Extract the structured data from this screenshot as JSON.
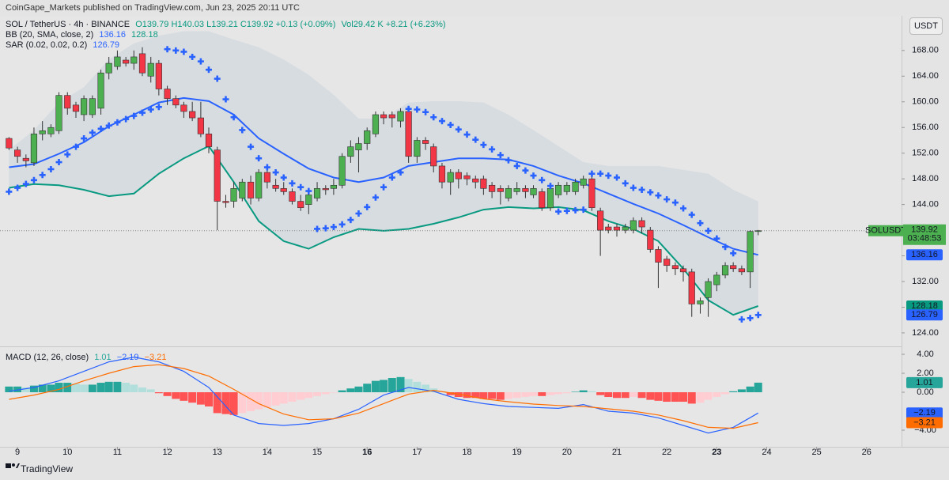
{
  "header": {
    "published": "CoinGape_Markets published on TradingView.com, Jun 23, 2025 20:11 UTC",
    "currency_button": "USDT",
    "footer_brand": "TradingView"
  },
  "chart_data": [
    {
      "type": "candlestick",
      "symbol": "SOL / TetherUS · 4h · BINANCE",
      "ohlc_text": "O139.79 H140.03 L139.21 C139.92 +0.13 (+0.09%)",
      "volume_text": "Vol29.42 K +8.21 (+6.23%)",
      "symbol_short": "SOLUSDT",
      "countdown": "03:48:53",
      "up_color": "#4caf50",
      "down_color": "#f23645",
      "grid": false,
      "xlim": [
        8.65,
        26.7
      ],
      "xticks": [
        9,
        10,
        11,
        12,
        13,
        14,
        15,
        16,
        17,
        18,
        19,
        20,
        21,
        22,
        23,
        24,
        25,
        26
      ],
      "xticks_bold": [
        16,
        23
      ],
      "ylim": [
        121.9,
        173.4
      ],
      "yticks": [
        {
          "value": 124,
          "label": "124.00"
        },
        {
          "value": 128,
          "label": "128.00"
        },
        {
          "value": 132,
          "label": "132.00"
        },
        {
          "value": 136,
          "label": "136.00"
        },
        {
          "value": 140,
          "label": "140.00"
        },
        {
          "value": 144,
          "label": "144.00"
        },
        {
          "value": 148,
          "label": "148.00"
        },
        {
          "value": 152,
          "label": "152.00"
        },
        {
          "value": 156,
          "label": "156.00"
        },
        {
          "value": 160,
          "label": "160.00"
        },
        {
          "value": 164,
          "label": "164.00"
        },
        {
          "value": 168,
          "label": "168.00"
        }
      ],
      "x": [
        8.83,
        9,
        9.17,
        9.33,
        9.5,
        9.67,
        9.83,
        10,
        10.17,
        10.33,
        10.5,
        10.67,
        10.83,
        11,
        11.17,
        11.33,
        11.5,
        11.67,
        11.83,
        12,
        12.17,
        12.33,
        12.5,
        12.67,
        12.83,
        13,
        13.17,
        13.33,
        13.5,
        13.67,
        13.83,
        14,
        14.17,
        14.33,
        14.5,
        14.67,
        14.83,
        15,
        15.17,
        15.33,
        15.5,
        15.67,
        15.83,
        16,
        16.17,
        16.33,
        16.5,
        16.67,
        16.83,
        17,
        17.17,
        17.33,
        17.5,
        17.67,
        17.83,
        18,
        18.17,
        18.33,
        18.5,
        18.67,
        18.83,
        19,
        19.17,
        19.33,
        19.5,
        19.67,
        19.83,
        20,
        20.17,
        20.33,
        20.5,
        20.67,
        20.83,
        21,
        21.17,
        21.33,
        21.5,
        21.67,
        21.83,
        22,
        22.17,
        22.33,
        22.5,
        22.67,
        22.83,
        23,
        23.17,
        23.33,
        23.5,
        23.67,
        23.83
      ],
      "open": [
        154.3,
        152.5,
        151.2,
        150.5,
        155,
        155,
        155.5,
        161,
        159.5,
        158,
        158,
        159,
        164.5,
        165.5,
        166.5,
        166,
        167.5,
        164,
        166,
        162,
        160.5,
        159.5,
        158.5,
        157.5,
        155,
        152.5,
        144.5,
        144.5,
        145,
        147.5,
        145,
        149,
        147,
        146.5,
        146,
        144.5,
        144,
        145,
        146.5,
        146.5,
        147,
        151.5,
        152.5,
        153.5,
        155,
        158,
        158,
        157,
        158.5,
        151.5,
        154,
        153,
        150,
        147.5,
        149,
        148.5,
        148,
        148,
        147,
        146.5,
        145,
        146,
        146.5,
        145.5,
        146,
        143.5,
        145.5,
        146,
        146,
        147,
        148,
        143,
        140.5,
        140.5,
        140,
        140,
        141.5,
        140,
        137,
        135.5,
        134.5,
        134,
        133.5,
        128.5,
        129.5,
        131.5,
        133,
        134.5,
        134,
        133.5,
        139.79
      ],
      "high": [
        154.5,
        153,
        151.8,
        156,
        157,
        156.5,
        161.5,
        161.5,
        160,
        161,
        161,
        165,
        167,
        168,
        167,
        168,
        168.5,
        167,
        166.5,
        162.5,
        161,
        160,
        160,
        160,
        156,
        153,
        145.5,
        147.5,
        148,
        148.5,
        149.5,
        149.5,
        148,
        147.5,
        146.5,
        145.5,
        146,
        147.5,
        147,
        148,
        152,
        154,
        154.5,
        156,
        158.5,
        158.5,
        158.5,
        159,
        159,
        154.5,
        154.5,
        153.5,
        150.5,
        149.5,
        149.5,
        149,
        148.5,
        148.5,
        147.5,
        147,
        147,
        147.5,
        147,
        147,
        146.5,
        147,
        147.5,
        147.5,
        148,
        148.5,
        148.5,
        143.5,
        141,
        141,
        141,
        142,
        142,
        140.5,
        137.5,
        136,
        135,
        134.5,
        134,
        129.5,
        132.5,
        133.5,
        135,
        135,
        134.5,
        140,
        140.03
      ],
      "low": [
        152.5,
        150.5,
        149.8,
        150,
        154,
        154.5,
        155,
        158,
        157.5,
        157,
        157.5,
        158,
        163.5,
        165,
        165.5,
        165,
        164,
        163,
        161,
        159.5,
        159,
        157.5,
        157,
        154.5,
        152,
        140,
        143.5,
        143.5,
        144.5,
        144,
        144.5,
        146.5,
        146,
        145.5,
        144,
        143,
        142.5,
        144.5,
        145.5,
        145.5,
        146.5,
        150.5,
        149,
        152.5,
        154.5,
        156.5,
        156,
        156,
        150.5,
        150.5,
        152.5,
        149,
        146.5,
        145.5,
        146.5,
        147,
        146.5,
        145.5,
        145,
        144,
        144.5,
        145.5,
        145,
        145,
        143,
        143,
        145,
        145.5,
        145.5,
        146.5,
        143,
        136,
        139.5,
        139,
        139.5,
        139.5,
        139.5,
        136.5,
        131,
        133.5,
        133,
        132,
        126.5,
        127,
        126.5,
        130.5,
        132.5,
        133.5,
        133,
        131,
        139.21
      ],
      "close": [
        152.8,
        151.5,
        150.8,
        155,
        155.5,
        156,
        161,
        159,
        158.5,
        160.5,
        160.5,
        164.5,
        166,
        167,
        166,
        167,
        164.5,
        166,
        162,
        160.5,
        159.5,
        158.5,
        157.5,
        155,
        153,
        144.5,
        144.3,
        146.5,
        147.5,
        145,
        149,
        147.5,
        146.5,
        146,
        144.5,
        143.5,
        145.5,
        146.5,
        146.3,
        147,
        151.5,
        153,
        153.5,
        155.5,
        158,
        157.5,
        157.5,
        158.5,
        151.5,
        154,
        153.5,
        150,
        147.5,
        149,
        148,
        148,
        147.5,
        146.5,
        146,
        146,
        146.5,
        146.5,
        146,
        146.5,
        143.5,
        146.5,
        147,
        147,
        147.5,
        148,
        143.5,
        140,
        140,
        140,
        140.5,
        141.5,
        140.5,
        137,
        135,
        134.5,
        134,
        133.5,
        128.5,
        129,
        132,
        133,
        134.5,
        134,
        133.5,
        139.8,
        139.92
      ],
      "bb": {
        "label": "BB (20, SMA, close, 2)",
        "basis_color": "#2962ff",
        "lower_color": "#089981",
        "fill_color": "#d3d9e0",
        "x": [
          8.83,
          9.33,
          9.83,
          10.33,
          10.83,
          11.33,
          11.83,
          12.33,
          12.83,
          13.33,
          13.83,
          14.33,
          14.83,
          15.33,
          15.83,
          16.33,
          16.83,
          17.33,
          17.83,
          18.33,
          18.83,
          19.33,
          19.83,
          20.33,
          20.83,
          21.33,
          21.83,
          22.33,
          22.83,
          23.33,
          23.83
        ],
        "upper": [
          152.5,
          155.6,
          159.9,
          162.3,
          166.6,
          169.1,
          170.3,
          171,
          171,
          169.7,
          168.5,
          166.6,
          164.2,
          161.1,
          157.4,
          157.4,
          159.9,
          160.1,
          160.1,
          159.9,
          158,
          155.6,
          153.1,
          150.6,
          150,
          150,
          150,
          149.4,
          148.8,
          146.3,
          144.5
        ],
        "basis": [
          149.8,
          150.3,
          151.9,
          153.7,
          156.2,
          158,
          159.9,
          160.6,
          160.1,
          158,
          154.3,
          151.9,
          149.6,
          148.2,
          147.5,
          148.2,
          150,
          150.6,
          151.2,
          151.2,
          151,
          150,
          148.5,
          147.3,
          145.7,
          144.1,
          142.6,
          140.8,
          138.9,
          137.1,
          136.16
        ],
        "lower": [
          146.6,
          147.2,
          147,
          146.3,
          145.3,
          145.7,
          148.8,
          151.2,
          153.1,
          147.5,
          141.4,
          138.3,
          137.1,
          138.9,
          140.2,
          139.9,
          140.2,
          141,
          142,
          143.2,
          143.6,
          143.4,
          143.6,
          143.1,
          141.4,
          140.2,
          138.3,
          134,
          129.1,
          126.8,
          128.18
        ]
      },
      "sar": {
        "label": "SAR (0.02, 0.02, 0.2)",
        "color": "#2962ff",
        "values": [
          146,
          146.6,
          147.2,
          147.8,
          148.6,
          149.5,
          150.6,
          151.8,
          153,
          154.3,
          155.2,
          155.8,
          156.3,
          156.8,
          157.3,
          157.8,
          158.3,
          158.8,
          159.2,
          168.2,
          168,
          167.8,
          167,
          166.3,
          165,
          163.6,
          160.4,
          157.6,
          155.6,
          153,
          151.2,
          149.8,
          149,
          148.2,
          147.3,
          146.7,
          146.1,
          140.2,
          140.3,
          140.5,
          140.9,
          141.6,
          142.6,
          143.6,
          145.1,
          146.7,
          148.2,
          149,
          158.9,
          158.8,
          158.4,
          157.6,
          157,
          156.4,
          155.7,
          154.9,
          154.1,
          153.3,
          152.6,
          151.7,
          150.9,
          150,
          149.3,
          148.5,
          147.8,
          146.9,
          142.9,
          143,
          143.1,
          143.2,
          148.8,
          148.8,
          148.5,
          148.2,
          147.3,
          146.6,
          146.3,
          145.9,
          145.4,
          144.8,
          144.3,
          143.4,
          142.4,
          141.1,
          139.9,
          138.7,
          137.4,
          136.4,
          126.1,
          126.3,
          126.79
        ]
      }
    },
    {
      "type": "macd",
      "label": "MACD (12, 26, close)",
      "legend_values": [
        "1.01",
        "−2.19",
        "−3.21"
      ],
      "ylim": [
        -5.75,
        4.67
      ],
      "yticks": [
        {
          "value": 4,
          "label": "4.00"
        },
        {
          "value": 2,
          "label": "2.00"
        },
        {
          "value": 0,
          "label": "0.00"
        },
        {
          "value": -4,
          "label": "−4.00"
        }
      ],
      "histogram": [
        0.6,
        0.6,
        0.5,
        0.7,
        0.8,
        0.8,
        1.0,
        1.0,
        0.9,
        0.8,
        0.8,
        1.0,
        1.1,
        1.1,
        1.0,
        0.8,
        0.5,
        0.3,
        -0.1,
        -0.4,
        -0.7,
        -0.9,
        -1.1,
        -1.3,
        -1.5,
        -2.2,
        -2.3,
        -2.4,
        -2.2,
        -2.0,
        -1.8,
        -1.6,
        -1.4,
        -1.2,
        -1.0,
        -0.8,
        -0.6,
        -0.4,
        -0.2,
        -0.05,
        0.2,
        0.4,
        0.6,
        0.9,
        1.2,
        1.3,
        1.5,
        1.6,
        1.4,
        1.1,
        0.8,
        0.4,
        0.1,
        -0.3,
        -0.5,
        -0.6,
        -0.6,
        -0.7,
        -0.7,
        -0.8,
        -0.7,
        -0.6,
        -0.5,
        -0.4,
        -0.4,
        -0.3,
        -0.2,
        -0.1,
        0.05,
        0.2,
        0.1,
        -0.3,
        -0.5,
        -0.6,
        -0.6,
        -0.5,
        -0.6,
        -0.8,
        -0.9,
        -1.0,
        -1.0,
        -1.0,
        -1.2,
        -1.1,
        -0.8,
        -0.5,
        -0.2,
        0.1,
        0.3,
        0.6,
        1.01
      ],
      "hist_colors": {
        "pos_up": "#26a69a",
        "pos_down": "#b2dfdb",
        "neg_down": "#ff5252",
        "neg_up": "#ffcdd2"
      },
      "line_x": [
        8.83,
        9.33,
        9.83,
        10.33,
        10.83,
        11.33,
        11.83,
        12.33,
        12.83,
        13.33,
        13.83,
        14.33,
        14.83,
        15.33,
        15.83,
        16.33,
        16.83,
        17.33,
        17.83,
        18.33,
        18.83,
        19.33,
        19.83,
        20.33,
        20.83,
        21.33,
        21.83,
        22.33,
        22.83,
        23.33,
        23.83
      ],
      "series": [
        {
          "color": "#2962ff",
          "values": [
            0.1,
            0.5,
            1.2,
            2.2,
            3.2,
            3.7,
            3.2,
            2.2,
            0.5,
            -2.4,
            -3.3,
            -3.5,
            -3.3,
            -2.8,
            -1.8,
            -0.3,
            0.5,
            0.1,
            -0.75,
            -1.2,
            -1.5,
            -1.6,
            -1.7,
            -1.3,
            -2.0,
            -2.2,
            -2.7,
            -3.5,
            -4.3,
            -3.7,
            -2.19
          ]
        },
        {
          "color": "#ff6d00",
          "values": [
            -0.75,
            -0.3,
            0.3,
            1.2,
            2.0,
            2.7,
            2.9,
            2.5,
            1.7,
            0.3,
            -1.2,
            -2.3,
            -2.9,
            -2.8,
            -2.2,
            -1.2,
            -0.2,
            0.2,
            -0.2,
            -0.7,
            -1.0,
            -1.25,
            -1.4,
            -1.5,
            -1.75,
            -2.0,
            -2.4,
            -3.0,
            -3.7,
            -3.8,
            -3.21
          ]
        }
      ]
    }
  ]
}
